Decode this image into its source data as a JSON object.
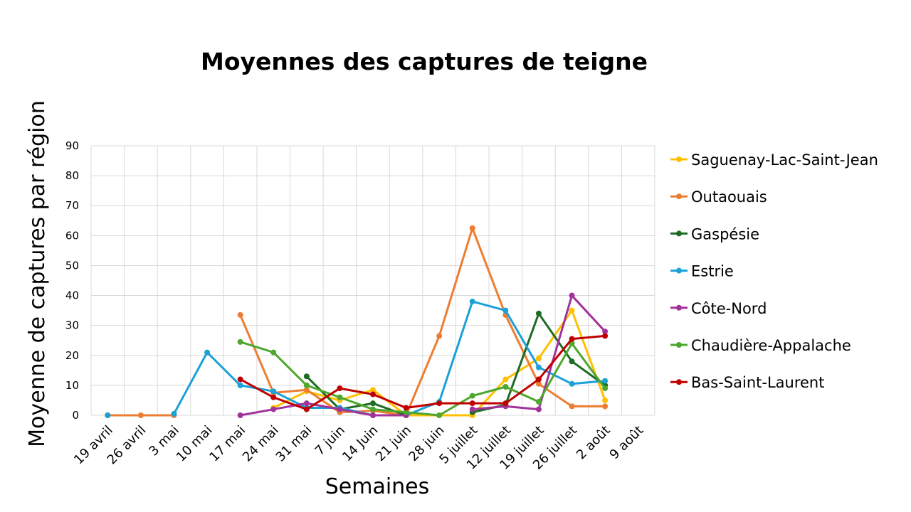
{
  "chart_data": {
    "type": "line",
    "title": "Moyennes des captures de teigne",
    "xlabel": "Semaines",
    "ylabel": "Moyenne de captures par région",
    "ylim": [
      0,
      90
    ],
    "yticks": [
      0,
      10,
      20,
      30,
      40,
      50,
      60,
      70,
      80,
      90
    ],
    "grid": true,
    "legend_position": "right",
    "categories": [
      "19 avril",
      "26 avril",
      "3 mai",
      "10 mai",
      "17 mai",
      "24 mai",
      "31 mai",
      "7 juin",
      "14 Juin",
      "21 juin",
      "28 juin",
      "5 juillet",
      "12 juillet",
      "19 juillet",
      "26 juillet",
      "2 août",
      "9 août"
    ],
    "series": [
      {
        "name": "Saguenay-Lac-Saint-Jean",
        "color": "#ffc000",
        "values": [
          null,
          null,
          null,
          null,
          null,
          2.5,
          8,
          5,
          8.5,
          0,
          0,
          0,
          12,
          19,
          35,
          5,
          null
        ]
      },
      {
        "name": "Outaouais",
        "color": "#ed7d31",
        "values": [
          0,
          0,
          0,
          null,
          33.5,
          7.5,
          8.5,
          1,
          1.5,
          0,
          26.5,
          62.5,
          33.5,
          10.5,
          3,
          3,
          null
        ]
      },
      {
        "name": "Gaspésie",
        "color": "#1e6b24",
        "values": [
          null,
          null,
          null,
          null,
          null,
          null,
          13,
          2,
          4,
          0,
          null,
          1,
          3.5,
          34,
          18,
          10,
          null
        ]
      },
      {
        "name": "Estrie",
        "color": "#1ba1d6",
        "values": [
          0,
          null,
          0.5,
          21,
          10,
          8,
          2.5,
          2.5,
          0,
          0,
          4.5,
          38,
          35,
          16,
          10.5,
          11.5,
          null
        ]
      },
      {
        "name": "Côte-Nord",
        "color": "#a0329a",
        "values": [
          null,
          null,
          null,
          null,
          0,
          2,
          4,
          2,
          0,
          0,
          null,
          2,
          3,
          2,
          40,
          28,
          null
        ]
      },
      {
        "name": "Chaudière-Appalache",
        "color": "#4ea72e",
        "values": [
          null,
          null,
          null,
          null,
          24.5,
          21,
          10,
          6,
          2,
          1,
          0,
          6.5,
          9.5,
          4.5,
          24,
          9,
          null
        ]
      },
      {
        "name": "Bas-Saint-Laurent",
        "color": "#c00000",
        "values": [
          null,
          null,
          null,
          null,
          12,
          6,
          2,
          9,
          7,
          2.5,
          4,
          4,
          4,
          12,
          25.5,
          26.5,
          null
        ]
      }
    ]
  }
}
